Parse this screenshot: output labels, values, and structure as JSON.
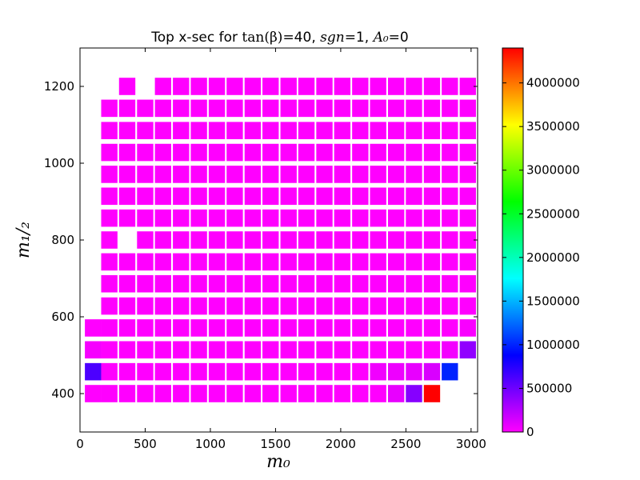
{
  "chart_data": {
    "type": "heatmap",
    "title_parts": [
      "Top x-sec for ",
      "tan(β)",
      "=40, ",
      "sgn",
      "=1, ",
      "A₀",
      "=0"
    ],
    "xlabel": "m₀",
    "ylabel": "m₁/₂",
    "xlim": [
      0,
      3050
    ],
    "ylim": [
      300,
      1300
    ],
    "xticks": [
      0,
      500,
      1000,
      1500,
      2000,
      2500,
      3000
    ],
    "yticks": [
      400,
      600,
      800,
      1000,
      1200
    ],
    "cell_x_centers": [
      100,
      225,
      362,
      500,
      637,
      775,
      912,
      1050,
      1187,
      1325,
      1462,
      1600,
      1737,
      1875,
      2012,
      2150,
      2287,
      2425,
      2562,
      2700,
      2837,
      2975
    ],
    "cell_y_centers": [
      400,
      457,
      514,
      571,
      628,
      686,
      743,
      800,
      857,
      914,
      971,
      1028,
      1085,
      1143,
      1200
    ],
    "cell_width": 125,
    "cell_height": 45,
    "default_value": 0,
    "colorbar": {
      "min": 0,
      "max": 4400000,
      "ticks": [
        0,
        500000,
        1000000,
        1500000,
        2000000,
        2500000,
        3000000,
        3500000,
        4000000
      ],
      "tick_labels": [
        "0",
        "500000",
        "1000000",
        "1500000",
        "2000000",
        "2500000",
        "3000000",
        "3500000",
        "4000000"
      ],
      "colormap": [
        "#ff00ff",
        "#8000ff",
        "#0000ff",
        "#0080ff",
        "#00ffff",
        "#00ff80",
        "#00ff00",
        "#80ff00",
        "#ffff00",
        "#ff8000",
        "#ff0000"
      ]
    },
    "row_first_columns": [
      0,
      0,
      0,
      0,
      1,
      1,
      1,
      1,
      1,
      1,
      1,
      1,
      1,
      1,
      2
    ],
    "row_last_columns": [
      19,
      20,
      21,
      21,
      21,
      21,
      21,
      21,
      21,
      21,
      21,
      21,
      21,
      21,
      21
    ],
    "missing_cells": [
      [
        7,
        2
      ],
      [
        14,
        3
      ]
    ],
    "special_values": [
      {
        "row": 0,
        "col": 17,
        "value": 80000
      },
      {
        "row": 0,
        "col": 18,
        "value": 420000
      },
      {
        "row": 0,
        "col": 19,
        "value": 4400000
      },
      {
        "row": 1,
        "col": 0,
        "value": 620000
      },
      {
        "row": 1,
        "col": 16,
        "value": 50000
      },
      {
        "row": 1,
        "col": 17,
        "value": 60000
      },
      {
        "row": 1,
        "col": 18,
        "value": 80000
      },
      {
        "row": 1,
        "col": 19,
        "value": 130000
      },
      {
        "row": 1,
        "col": 20,
        "value": 1000000
      },
      {
        "row": 2,
        "col": 0,
        "value": 30000
      },
      {
        "row": 2,
        "col": 20,
        "value": 40000
      },
      {
        "row": 2,
        "col": 21,
        "value": 380000
      },
      {
        "row": 3,
        "col": 21,
        "value": 20000
      }
    ]
  }
}
